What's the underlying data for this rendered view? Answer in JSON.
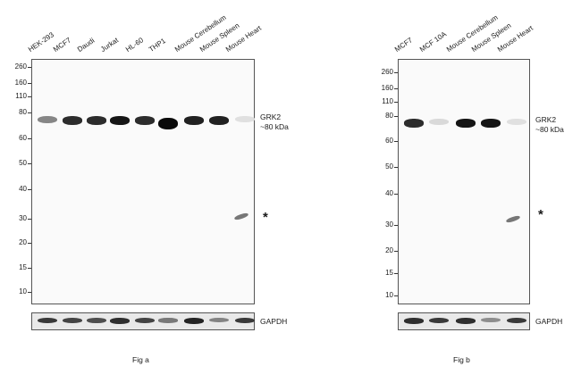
{
  "panels": [
    {
      "id": "a",
      "caption": "Fig a",
      "lanes": [
        "HEK-293",
        "MCF7",
        "Daudi",
        "Jurkat",
        "HL-60",
        "THP1",
        "Mouse Cerebellum",
        "Mouse Spleen",
        "Mouse Heart"
      ],
      "mw_markers": [
        "260",
        "160",
        "110",
        "80",
        "60",
        "50",
        "40",
        "30",
        "20",
        "15",
        "10"
      ],
      "target_label": "GRK2",
      "target_size": "~80 kDa",
      "loading_control": "GAPDH",
      "nonspecific_marker": "*",
      "target_band_intensity": [
        0.45,
        0.85,
        0.85,
        0.95,
        0.85,
        1.0,
        0.9,
        0.9,
        0.05
      ],
      "gapdh_band_intensity": [
        0.8,
        0.75,
        0.7,
        0.85,
        0.75,
        0.5,
        0.9,
        0.45,
        0.8
      ]
    },
    {
      "id": "b",
      "caption": "Fig b",
      "lanes": [
        "MCF7",
        "MCF 10A",
        "Mouse Cerebellum",
        "Mouse Spleen",
        "Mouse Heart"
      ],
      "mw_markers": [
        "260",
        "160",
        "110",
        "80",
        "60",
        "50",
        "40",
        "30",
        "20",
        "15",
        "10"
      ],
      "target_label": "GRK2",
      "target_size": "~80 kDa",
      "loading_control": "GAPDH",
      "nonspecific_marker": "*",
      "target_band_intensity": [
        0.85,
        0.08,
        0.95,
        0.95,
        0.05
      ],
      "gapdh_band_intensity": [
        0.85,
        0.8,
        0.85,
        0.4,
        0.8
      ]
    }
  ]
}
